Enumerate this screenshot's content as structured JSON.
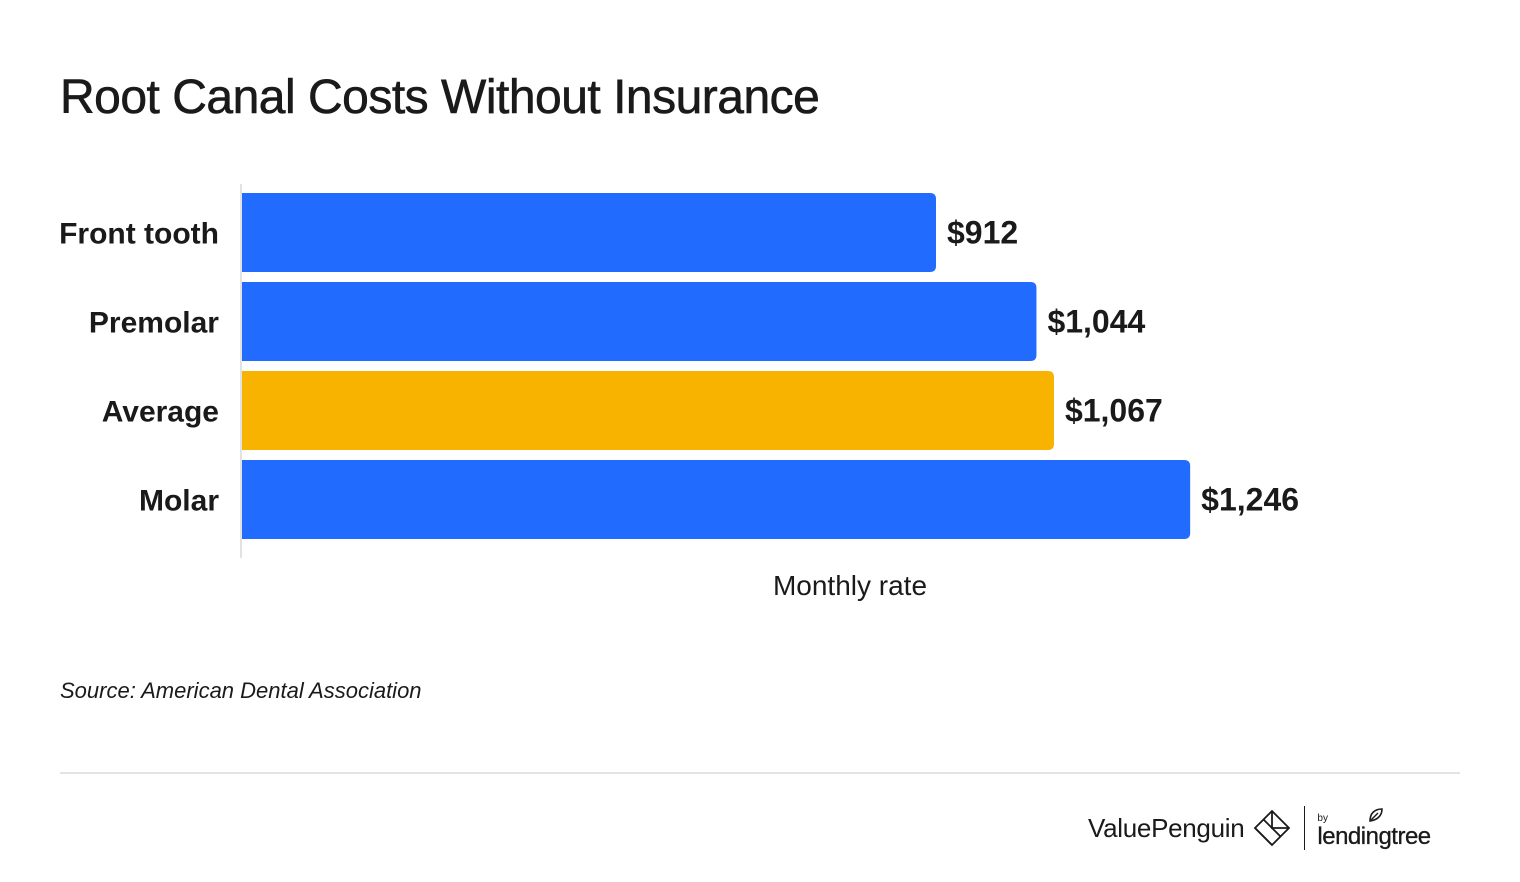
{
  "title": "Root Canal Costs Without Insurance",
  "source": "Source: American Dental Association",
  "branding": {
    "primary": "ValuePenguin",
    "by": "by",
    "partner": "lendingtree",
    "primary_icon": "valuepenguin-logo-icon",
    "partner_icon": "leaf-icon"
  },
  "colors": {
    "bar_default": "#216bff",
    "bar_highlight": "#f8b300",
    "text": "#1a1a1a",
    "axis": "#d9d9d9"
  },
  "chart_data": {
    "type": "bar",
    "orientation": "horizontal",
    "title": "Root Canal Costs Without Insurance",
    "categories": [
      "Front tooth",
      "Premolar",
      "Average",
      "Molar"
    ],
    "values": [
      912,
      1044,
      1067,
      1246
    ],
    "data_labels": [
      "$912",
      "$1,044",
      "$1,067",
      "$1,246"
    ],
    "highlight": [
      "no",
      "no",
      "yes",
      "no"
    ],
    "xlabel": "Monthly rate",
    "ylabel": "",
    "xlim": [
      0,
      1400
    ],
    "grid": false,
    "legend": "none"
  }
}
